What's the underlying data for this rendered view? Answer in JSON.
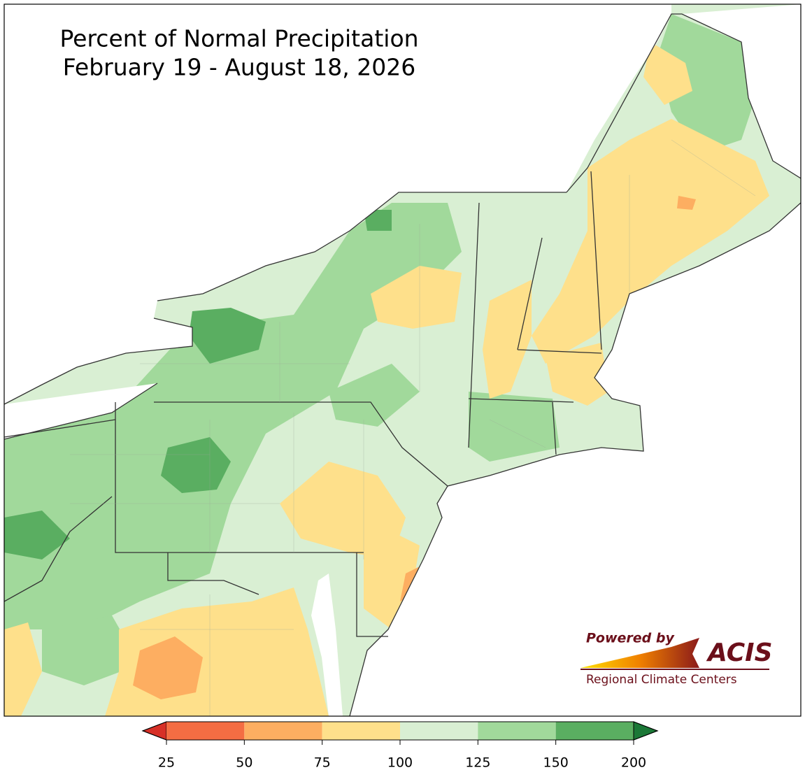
{
  "title": [
    "Percent of Normal Precipitation",
    "February 19 - August 18, 2026"
  ],
  "colorbar": {
    "bounds": [
      25,
      50,
      75,
      100,
      125,
      150,
      200
    ],
    "colors": [
      "#f46d43",
      "#fdae61",
      "#fee08b",
      "#d9efd3",
      "#a1d99b",
      "#5aae61"
    ],
    "under_color": "#d73027",
    "over_color": "#1b7837"
  },
  "logo": {
    "tagline": "Powered by",
    "name": "ACIS",
    "subtitle": "Regional Climate Centers"
  }
}
